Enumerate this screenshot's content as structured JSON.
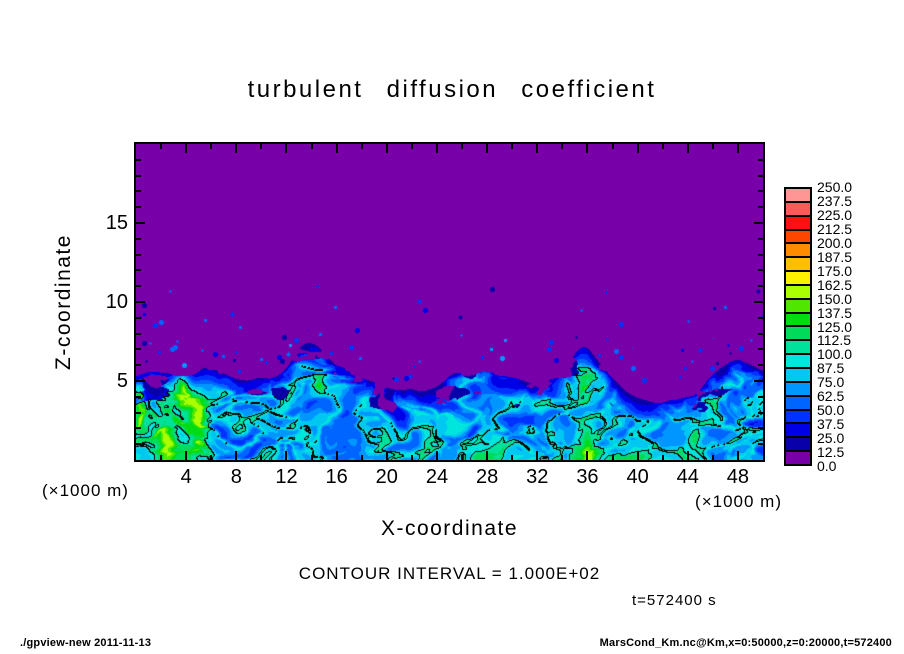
{
  "title": "turbulent diffusion coefficient",
  "plot": {
    "x_axis": {
      "label": "X-coordinate",
      "unit_label": "(×1000 m)",
      "tick_labels": [
        4,
        8,
        12,
        16,
        20,
        24,
        28,
        32,
        36,
        40,
        44,
        48
      ],
      "minor_tick_step": 2,
      "range": [
        0,
        50
      ]
    },
    "z_axis": {
      "label": "Z-coordinate",
      "unit_label": "(×1000 m)",
      "tick_labels": [
        5,
        10,
        15
      ],
      "minor_tick_step": 1,
      "range": [
        0,
        20
      ]
    }
  },
  "colorbar": {
    "tick_labels_top_to_bottom": [
      "250.0",
      "237.5",
      "225.0",
      "212.5",
      "200.0",
      "187.5",
      "175.0",
      "162.5",
      "150.0",
      "137.5",
      "125.0",
      "112.5",
      "100.0",
      "87.5",
      "75.0",
      "62.5",
      "50.0",
      "37.5",
      "25.0",
      "12.5",
      "0.0"
    ],
    "cell_colors_bottom_to_top": [
      "#7800A8",
      "#0A00AA",
      "#0000E6",
      "#0032FF",
      "#0064FF",
      "#0096FF",
      "#00C8F0",
      "#00E6DC",
      "#00E19B",
      "#00DC5A",
      "#00DC14",
      "#50E600",
      "#AAFF00",
      "#FFF000",
      "#FFBE00",
      "#FF8C00",
      "#FF4600",
      "#FF0F0F",
      "#FF5A5A",
      "#FF9696"
    ]
  },
  "annotations": {
    "contour_interval": "CONTOUR INTERVAL = 1.000E+02",
    "time": "t=572400 s"
  },
  "footer": {
    "left": "./gpview-new  2011-11-13",
    "right": "MarsCond_Km.nc@Km,x=0:50000,z=0:20000,t=572400"
  },
  "chart_data": {
    "type": "heatmap",
    "title": "turbulent diffusion coefficient",
    "xlabel": "X-coordinate (×1000 m)",
    "ylabel": "Z-coordinate (×1000 m)",
    "xlim": [
      0,
      50
    ],
    "ylim": [
      0,
      20
    ],
    "value_min": 0,
    "value_max": 250,
    "level_step": 12.5,
    "contour_interval": 100,
    "time": "t=572400 s",
    "legend_position": "right",
    "description": "Convective boundary layer: quiescent region (Km~0, purple) above z~5-7 km; turbulent layer below with blue/cyan filamentary swirls (Km~25-100); Km>100 regions (green, outlined by the 100 contour) near x~2-5 km, x~14.5 km, x~36 km, x~44.5 km; sparse detached turbulent specks between z~6-11 km.",
    "render": {
      "interface_base": 5.15,
      "plumes": [
        [
          13.8,
          1.2,
          1.0
        ],
        [
          27.0,
          0.9,
          1.2
        ],
        [
          35.6,
          1.3,
          0.9
        ],
        [
          47.5,
          0.9,
          1.3
        ],
        [
          6.0,
          0.6,
          1.0
        ],
        [
          21.0,
          -0.7,
          2.0
        ],
        [
          9.7,
          -0.6,
          1.0
        ],
        [
          40.0,
          -0.5,
          1.5
        ]
      ],
      "hot_spots": [
        [
          2.4,
          1.4,
          1.1,
          1.6,
          80
        ],
        [
          4.8,
          2.4,
          1.0,
          2.2,
          85
        ],
        [
          3.6,
          4.6,
          0.7,
          0.9,
          75
        ],
        [
          0.3,
          3.0,
          0.5,
          1.6,
          60
        ],
        [
          14.6,
          4.9,
          0.5,
          0.55,
          55
        ],
        [
          36.0,
          1.0,
          0.6,
          1.4,
          60
        ],
        [
          44.6,
          1.3,
          0.5,
          0.8,
          45
        ],
        [
          35.8,
          4.5,
          0.35,
          0.9,
          35
        ]
      ]
    }
  }
}
